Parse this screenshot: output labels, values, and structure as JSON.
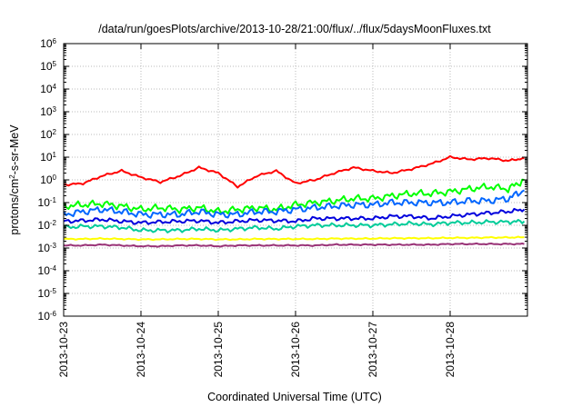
{
  "chart_data": {
    "type": "line",
    "title": "/data/run/goesPlots/archive/2013-10-28/21:00/flux/../flux/5daysMoonFluxes.txt",
    "xlabel": "Coordinated Universal Time (UTC)",
    "ylabel_parts": [
      "protons/cm",
      "2",
      "-s-sr-MeV"
    ],
    "x_type": "date",
    "xlim": [
      "2013-10-23",
      "2013-10-29"
    ],
    "x_ticks": [
      "2013-10-23",
      "2013-10-24",
      "2013-10-25",
      "2013-10-26",
      "2013-10-27",
      "2013-10-28"
    ],
    "y_scale": "log",
    "ylim": [
      1e-06,
      1000000.0
    ],
    "y_ticks": [
      {
        "base": "10",
        "exp": "-6"
      },
      {
        "base": "10",
        "exp": "-5"
      },
      {
        "base": "10",
        "exp": "-4"
      },
      {
        "base": "10",
        "exp": "-3"
      },
      {
        "base": "10",
        "exp": "-2"
      },
      {
        "base": "10",
        "exp": "-1"
      },
      {
        "base": "10",
        "exp": "0"
      },
      {
        "base": "10",
        "exp": "1"
      },
      {
        "base": "10",
        "exp": "2"
      },
      {
        "base": "10",
        "exp": "3"
      },
      {
        "base": "10",
        "exp": "4"
      },
      {
        "base": "10",
        "exp": "5"
      },
      {
        "base": "10",
        "exp": "6"
      }
    ],
    "grid": true,
    "series": [
      {
        "color": "#ff0000",
        "x": [
          "2013-10-23 00:00",
          "2013-10-23 06:00",
          "2013-10-23 12:00",
          "2013-10-23 18:00",
          "2013-10-24 00:00",
          "2013-10-24 06:00",
          "2013-10-24 12:00",
          "2013-10-24 18:00",
          "2013-10-25 00:00",
          "2013-10-25 06:00",
          "2013-10-25 12:00",
          "2013-10-25 18:00",
          "2013-10-26 00:00",
          "2013-10-26 06:00",
          "2013-10-26 12:00",
          "2013-10-26 18:00",
          "2013-10-27 00:00",
          "2013-10-27 06:00",
          "2013-10-27 12:00",
          "2013-10-27 18:00",
          "2013-10-28 00:00",
          "2013-10-28 06:00",
          "2013-10-28 12:00",
          "2013-10-28 18:00",
          "2013-10-28 23:00"
        ],
        "y": [
          0.6,
          0.7,
          1.5,
          2.5,
          1.3,
          0.8,
          1.5,
          3.5,
          2.0,
          0.5,
          1.5,
          2.5,
          0.7,
          1.0,
          2.0,
          3.5,
          2.5,
          2.0,
          3.0,
          5.0,
          10.0,
          8.0,
          9.0,
          7.0,
          9.0
        ]
      },
      {
        "color": "#00ff00",
        "x": [
          "2013-10-23 00:00",
          "2013-10-23 06:00",
          "2013-10-23 12:00",
          "2013-10-23 18:00",
          "2013-10-24 00:00",
          "2013-10-24 06:00",
          "2013-10-24 12:00",
          "2013-10-24 18:00",
          "2013-10-25 00:00",
          "2013-10-25 06:00",
          "2013-10-25 12:00",
          "2013-10-25 18:00",
          "2013-10-26 00:00",
          "2013-10-26 06:00",
          "2013-10-26 12:00",
          "2013-10-26 18:00",
          "2013-10-27 00:00",
          "2013-10-27 06:00",
          "2013-10-27 12:00",
          "2013-10-27 18:00",
          "2013-10-28 00:00",
          "2013-10-28 06:00",
          "2013-10-28 12:00",
          "2013-10-28 18:00",
          "2013-10-28 23:00"
        ],
        "y": [
          0.07,
          0.08,
          0.09,
          0.07,
          0.05,
          0.06,
          0.05,
          0.06,
          0.04,
          0.05,
          0.06,
          0.05,
          0.08,
          0.1,
          0.12,
          0.15,
          0.15,
          0.2,
          0.25,
          0.25,
          0.3,
          0.4,
          0.5,
          0.4,
          1.0
        ]
      },
      {
        "color": "#0066ff",
        "x": [
          "2013-10-23 00:00",
          "2013-10-23 06:00",
          "2013-10-23 12:00",
          "2013-10-23 18:00",
          "2013-10-24 00:00",
          "2013-10-24 06:00",
          "2013-10-24 12:00",
          "2013-10-24 18:00",
          "2013-10-25 00:00",
          "2013-10-25 06:00",
          "2013-10-25 12:00",
          "2013-10-25 18:00",
          "2013-10-26 00:00",
          "2013-10-26 06:00",
          "2013-10-26 12:00",
          "2013-10-26 18:00",
          "2013-10-27 00:00",
          "2013-10-27 06:00",
          "2013-10-27 12:00",
          "2013-10-27 18:00",
          "2013-10-28 00:00",
          "2013-10-28 06:00",
          "2013-10-28 12:00",
          "2013-10-28 18:00",
          "2013-10-28 23:00"
        ],
        "y": [
          0.03,
          0.04,
          0.05,
          0.04,
          0.03,
          0.03,
          0.03,
          0.04,
          0.03,
          0.03,
          0.04,
          0.04,
          0.05,
          0.06,
          0.07,
          0.08,
          0.08,
          0.1,
          0.1,
          0.1,
          0.1,
          0.12,
          0.12,
          0.15,
          0.35
        ]
      },
      {
        "color": "#0000dd",
        "x": [
          "2013-10-23 00:00",
          "2013-10-23 06:00",
          "2013-10-23 12:00",
          "2013-10-23 18:00",
          "2013-10-24 00:00",
          "2013-10-24 06:00",
          "2013-10-24 12:00",
          "2013-10-24 18:00",
          "2013-10-25 00:00",
          "2013-10-25 06:00",
          "2013-10-25 12:00",
          "2013-10-25 18:00",
          "2013-10-26 00:00",
          "2013-10-26 06:00",
          "2013-10-26 12:00",
          "2013-10-26 18:00",
          "2013-10-27 00:00",
          "2013-10-27 06:00",
          "2013-10-27 12:00",
          "2013-10-27 18:00",
          "2013-10-28 00:00",
          "2013-10-28 06:00",
          "2013-10-28 12:00",
          "2013-10-28 18:00",
          "2013-10-28 23:00"
        ],
        "y": [
          0.015,
          0.016,
          0.018,
          0.015,
          0.013,
          0.014,
          0.015,
          0.016,
          0.013,
          0.015,
          0.017,
          0.016,
          0.015,
          0.02,
          0.02,
          0.02,
          0.02,
          0.025,
          0.025,
          0.02,
          0.025,
          0.03,
          0.035,
          0.04,
          0.05
        ]
      },
      {
        "color": "#00cc99",
        "x": [
          "2013-10-23 00:00",
          "2013-10-23 06:00",
          "2013-10-23 12:00",
          "2013-10-23 18:00",
          "2013-10-24 00:00",
          "2013-10-24 06:00",
          "2013-10-24 12:00",
          "2013-10-24 18:00",
          "2013-10-25 00:00",
          "2013-10-25 06:00",
          "2013-10-25 12:00",
          "2013-10-25 18:00",
          "2013-10-26 00:00",
          "2013-10-26 06:00",
          "2013-10-26 12:00",
          "2013-10-26 18:00",
          "2013-10-27 00:00",
          "2013-10-27 06:00",
          "2013-10-27 12:00",
          "2013-10-27 18:00",
          "2013-10-28 00:00",
          "2013-10-28 06:00",
          "2013-10-28 12:00",
          "2013-10-28 18:00",
          "2013-10-28 23:00"
        ],
        "y": [
          0.008,
          0.009,
          0.009,
          0.008,
          0.006,
          0.006,
          0.006,
          0.007,
          0.006,
          0.007,
          0.008,
          0.007,
          0.009,
          0.01,
          0.01,
          0.01,
          0.01,
          0.011,
          0.012,
          0.011,
          0.013,
          0.013,
          0.014,
          0.014,
          0.015
        ]
      },
      {
        "color": "#ffff00",
        "x": [
          "2013-10-23 00:00",
          "2013-10-23 06:00",
          "2013-10-23 12:00",
          "2013-10-23 18:00",
          "2013-10-24 00:00",
          "2013-10-24 06:00",
          "2013-10-24 12:00",
          "2013-10-24 18:00",
          "2013-10-25 00:00",
          "2013-10-25 06:00",
          "2013-10-25 12:00",
          "2013-10-25 18:00",
          "2013-10-26 00:00",
          "2013-10-26 06:00",
          "2013-10-26 12:00",
          "2013-10-26 18:00",
          "2013-10-27 00:00",
          "2013-10-27 06:00",
          "2013-10-27 12:00",
          "2013-10-27 18:00",
          "2013-10-28 00:00",
          "2013-10-28 06:00",
          "2013-10-28 12:00",
          "2013-10-28 18:00",
          "2013-10-28 23:00"
        ],
        "y": [
          0.0025,
          0.0025,
          0.0026,
          0.0025,
          0.0024,
          0.0024,
          0.0025,
          0.0025,
          0.0024,
          0.0024,
          0.0025,
          0.0025,
          0.0025,
          0.0025,
          0.0026,
          0.0026,
          0.0026,
          0.0027,
          0.0027,
          0.0027,
          0.0028,
          0.0028,
          0.0029,
          0.0029,
          0.003
        ]
      },
      {
        "color": "#993377",
        "x": [
          "2013-10-23 00:00",
          "2013-10-23 06:00",
          "2013-10-23 12:00",
          "2013-10-23 18:00",
          "2013-10-24 00:00",
          "2013-10-24 06:00",
          "2013-10-24 12:00",
          "2013-10-24 18:00",
          "2013-10-25 00:00",
          "2013-10-25 06:00",
          "2013-10-25 12:00",
          "2013-10-25 18:00",
          "2013-10-26 00:00",
          "2013-10-26 06:00",
          "2013-10-26 12:00",
          "2013-10-26 18:00",
          "2013-10-27 00:00",
          "2013-10-27 06:00",
          "2013-10-27 12:00",
          "2013-10-27 18:00",
          "2013-10-28 00:00",
          "2013-10-28 06:00",
          "2013-10-28 12:00",
          "2013-10-28 18:00",
          "2013-10-28 23:00"
        ],
        "y": [
          0.0013,
          0.0013,
          0.0014,
          0.0013,
          0.0012,
          0.0012,
          0.0013,
          0.0013,
          0.0012,
          0.0013,
          0.0013,
          0.0013,
          0.0013,
          0.0013,
          0.0014,
          0.0014,
          0.0014,
          0.0014,
          0.0014,
          0.0014,
          0.0015,
          0.0015,
          0.0015,
          0.0015,
          0.0015
        ]
      }
    ]
  }
}
